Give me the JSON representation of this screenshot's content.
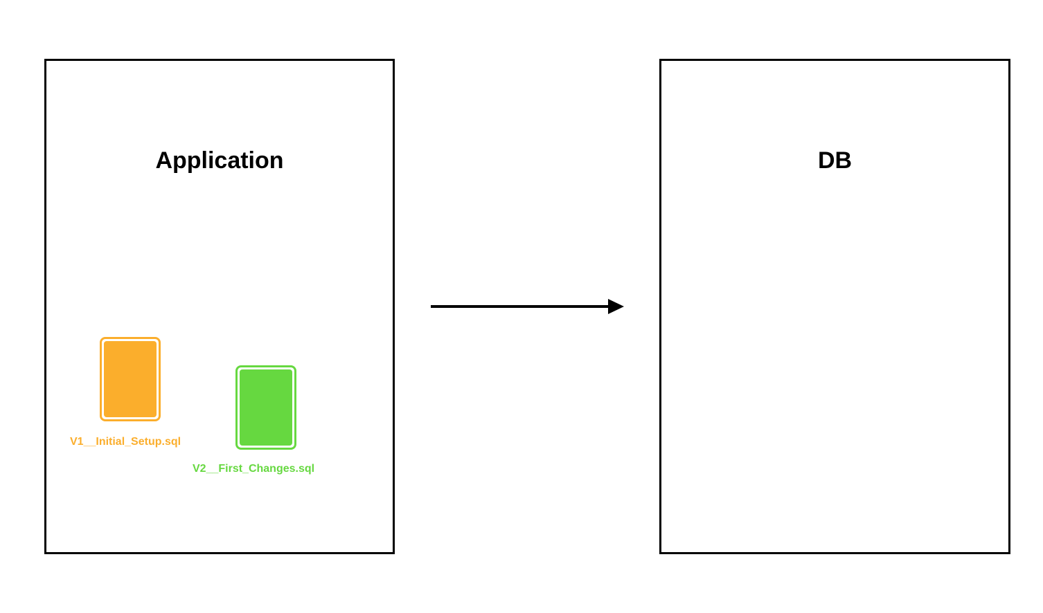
{
  "application": {
    "title": "Application",
    "files": [
      {
        "name": "V1__Initial_Setup.sql",
        "color": "#FBAE2C"
      },
      {
        "name": "V2__First_Changes.sql",
        "color": "#66D840"
      }
    ]
  },
  "database": {
    "title": "DB"
  },
  "arrow": {
    "direction": "application-to-db",
    "color": "#000000"
  }
}
